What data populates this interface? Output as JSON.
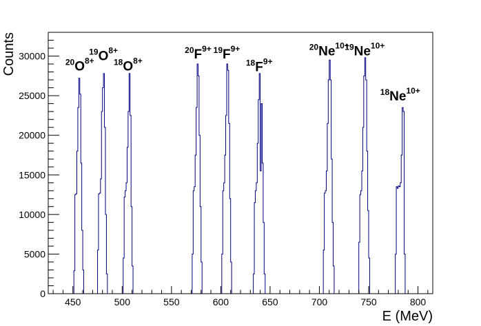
{
  "chart_data": {
    "type": "histogram",
    "xlabel": "E (MeV)",
    "ylabel": "Counts",
    "xlim": [
      425,
      815
    ],
    "ylim": [
      0,
      33000
    ],
    "x_ticks": [
      450,
      500,
      550,
      600,
      650,
      700,
      750,
      800
    ],
    "y_ticks": [
      0,
      5000,
      10000,
      15000,
      20000,
      25000,
      30000
    ],
    "line_color": "#000080",
    "grid": false,
    "legend": "none",
    "bin_width": 1,
    "peaks": [
      {
        "label_mass": "20",
        "label_element": "O",
        "label_charge": "8+",
        "x_start": 451,
        "x_end": 461,
        "ann_x": 457,
        "ann_y": 28200,
        "counts": [
          2900,
          12500,
          12600,
          18000,
          23500,
          27200,
          25200,
          16500,
          8000,
          3000
        ]
      },
      {
        "label_mass": "19",
        "label_element": "O",
        "label_charge": "8+",
        "x_start": 475,
        "x_end": 485,
        "ann_x": 481,
        "ann_y": 29500,
        "counts": [
          5500,
          12600,
          12700,
          14500,
          23000,
          26000,
          27800,
          21000,
          10000,
          2500
        ]
      },
      {
        "label_mass": "18",
        "label_element": "O",
        "label_charge": "8+",
        "x_start": 501,
        "x_end": 511,
        "ann_x": 506,
        "ann_y": 28200,
        "counts": [
          4500,
          12200,
          13000,
          14000,
          18500,
          23000,
          27800,
          22500,
          11000,
          3500
        ]
      },
      {
        "label_mass": "20",
        "label_element": "F",
        "label_charge": "9+",
        "x_start": 571,
        "x_end": 581,
        "ann_x": 577,
        "ann_y": 29700,
        "counts": [
          5000,
          13000,
          13500,
          17500,
          23500,
          29000,
          27500,
          20000,
          11000,
          4000
        ]
      },
      {
        "label_mass": "19",
        "label_element": "F",
        "label_charge": "9+",
        "x_start": 601,
        "x_end": 611,
        "ann_x": 606,
        "ann_y": 29700,
        "counts": [
          5000,
          13000,
          14000,
          17500,
          22500,
          29000,
          28200,
          21500,
          12000,
          4000
        ]
      },
      {
        "label_mass": "18",
        "label_element": "F",
        "label_charge": "9+",
        "x_start": 633,
        "x_end": 645,
        "ann_x": 639,
        "ann_y": 28100,
        "counts": [
          2500,
          11500,
          13000,
          14000,
          19000,
          24500,
          27800,
          15500,
          24000,
          16500,
          9000,
          2500
        ]
      },
      {
        "label_mass": "20",
        "label_element": "Ne",
        "label_charge": "10+",
        "x_start": 704,
        "x_end": 715,
        "ann_x": 710,
        "ann_y": 30100,
        "counts": [
          5500,
          12700,
          13000,
          15500,
          21500,
          27000,
          29500,
          27000,
          17000,
          9000,
          3500
        ]
      },
      {
        "label_mass": "19",
        "label_element": "Ne",
        "label_charge": "10+",
        "x_start": 740,
        "x_end": 751,
        "ann_x": 746,
        "ann_y": 30100,
        "counts": [
          6500,
          12500,
          13000,
          15500,
          21000,
          27500,
          29800,
          27000,
          18000,
          10500,
          4500
        ]
      },
      {
        "label_mass": "18",
        "label_element": "Ne",
        "label_charge": "10+",
        "x_start": 777,
        "x_end": 787,
        "ann_x": 782,
        "ann_y": 24400,
        "counts": [
          5000,
          13500,
          13300,
          13600,
          13500,
          14000,
          17500,
          23500,
          23000,
          5000
        ]
      }
    ]
  }
}
